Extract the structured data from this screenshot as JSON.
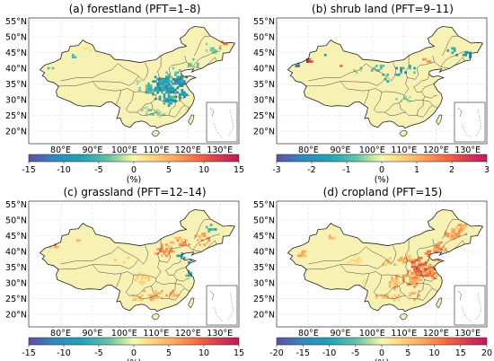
{
  "panels": [
    {
      "title": "(a) forestland (PFT=1–8)",
      "lat_labels": [
        "55°N",
        "50°N",
        "45°N",
        "40°N",
        "35°N",
        "30°N",
        "25°N",
        "20°N"
      ],
      "lon_labels": [
        "80°E",
        "90°E",
        "100°E",
        "110°E",
        "120°E",
        "130°E"
      ],
      "colorbar": {
        "ticks": [
          "-15",
          "-10",
          "-5",
          "0",
          "5",
          "10",
          "15"
        ],
        "unit": "(%)",
        "min": -15,
        "max": 15
      },
      "pattern": "forest"
    },
    {
      "title": "(b) shrub land (PFT=9–11)",
      "lat_labels": [
        "55°N",
        "50°N",
        "45°N",
        "40°N",
        "35°N",
        "30°N",
        "25°N",
        "20°N"
      ],
      "lon_labels": [
        "80°E",
        "90°E",
        "100°E",
        "110°E",
        "120°E",
        "130°E"
      ],
      "colorbar": {
        "ticks": [
          "-3",
          "-2",
          "-1",
          "0",
          "1",
          "2",
          "3"
        ],
        "unit": "(%)",
        "min": -3,
        "max": 3
      },
      "pattern": "shrub"
    },
    {
      "title": "(c) grassland (PFT=12–14)",
      "lat_labels": [
        "55°N",
        "50°N",
        "45°N",
        "40°N",
        "35°N",
        "30°N",
        "25°N",
        "20°N"
      ],
      "lon_labels": [
        "80°E",
        "90°E",
        "100°E",
        "110°E",
        "120°E",
        "130°E"
      ],
      "colorbar": {
        "ticks": [
          "-15",
          "-10",
          "-5",
          "0",
          "5",
          "10",
          "15"
        ],
        "unit": "(%)",
        "min": -15,
        "max": 15
      },
      "pattern": "grass"
    },
    {
      "title": "(d) cropland (PFT=15)",
      "lat_labels": [
        "55°N",
        "50°N",
        "45°N",
        "40°N",
        "35°N",
        "30°N",
        "25°N",
        "20°N"
      ],
      "lon_labels": [
        "80°E",
        "90°E",
        "100°E",
        "110°E",
        "120°E",
        "130°E"
      ],
      "colorbar": {
        "ticks": [
          "-20",
          "-15",
          "-10",
          "-5",
          "0",
          "5",
          "10",
          "15",
          "20"
        ],
        "unit": "(%)",
        "min": -20,
        "max": 20
      },
      "pattern": "crop"
    }
  ],
  "colors": {
    "land_base": "#f7f2b4",
    "border": "#222222",
    "grid": "#c8c8c8",
    "colormap": [
      "#5e4fa2",
      "#3288bd",
      "#1f9fb5",
      "#66c2a5",
      "#abdda4",
      "#f2f7b0",
      "#fee08b",
      "#fdae61",
      "#f46d43",
      "#d53e4f",
      "#c2185b"
    ]
  }
}
